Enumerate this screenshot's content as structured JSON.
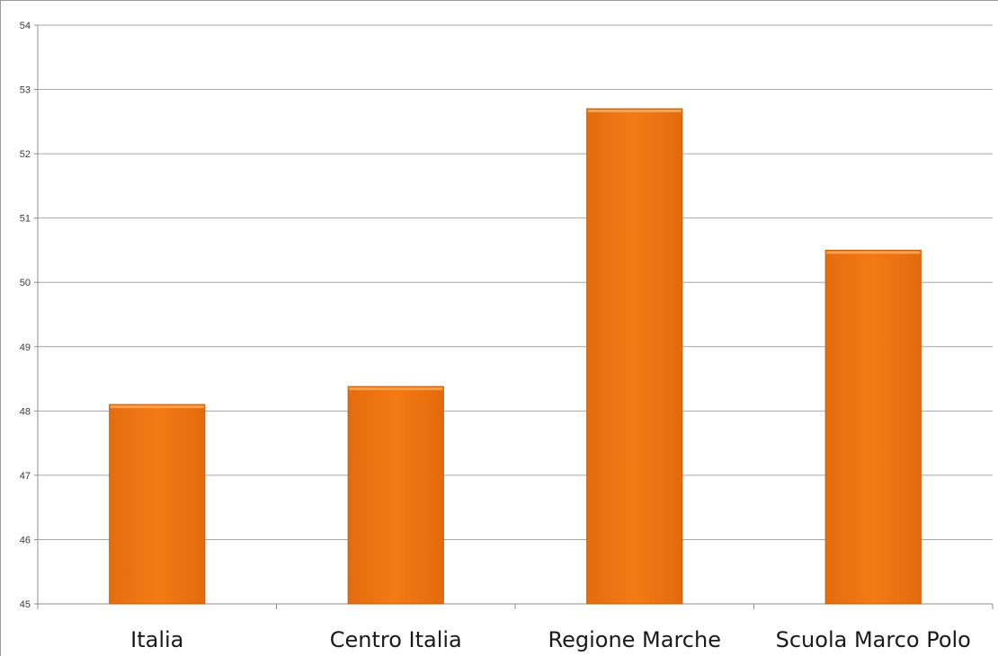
{
  "chart_data": {
    "type": "bar",
    "title": "",
    "xlabel": "",
    "ylabel": "",
    "categories": [
      "Italia",
      "Centro Italia",
      "Regione Marche",
      "Scuola Marco Polo"
    ],
    "values": [
      48.1,
      48.38,
      52.7,
      50.5
    ],
    "ylim": [
      45,
      54
    ],
    "yticks": [
      "45",
      "46",
      "47",
      "48",
      "49",
      "50",
      "51",
      "52",
      "53",
      "54"
    ],
    "grid": true,
    "legend": "none",
    "bar_color": "#f07614",
    "bar_top_color": "#f9a24e",
    "bar_edge_color": "#c35e0c"
  }
}
